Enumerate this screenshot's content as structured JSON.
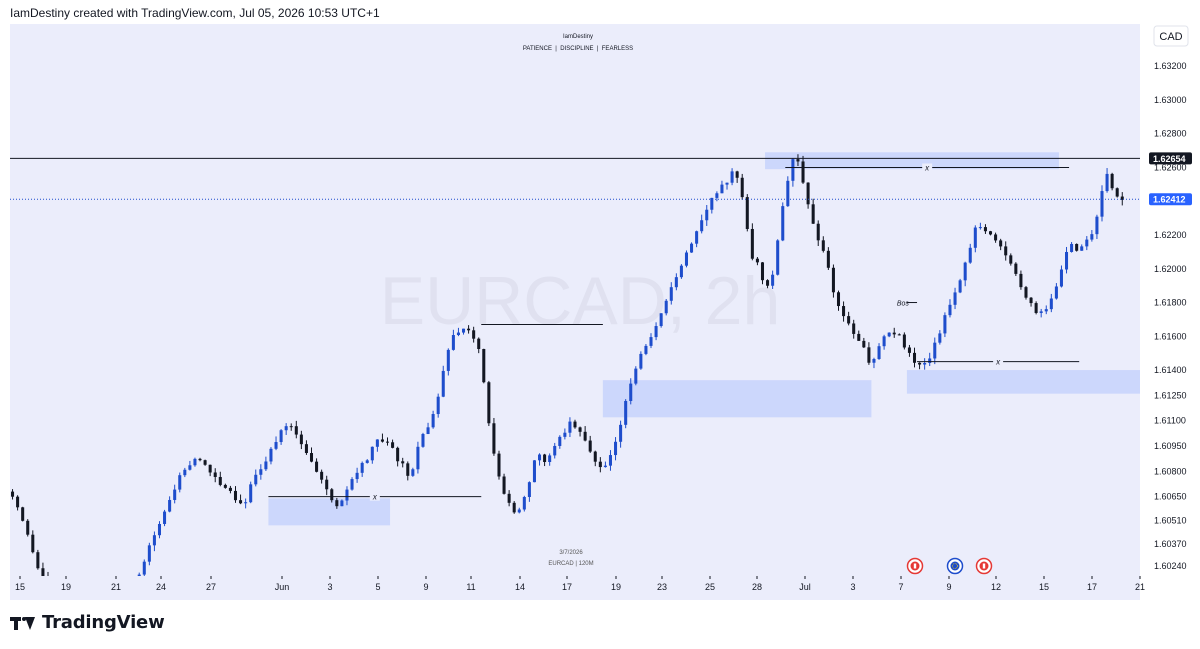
{
  "header": {
    "text": "IamDestiny created with TradingView.com, Jul 05, 2026 10:53 UTC+1"
  },
  "footer": {
    "logo_text": "TradingView"
  },
  "chart_title": {
    "author": "IamDestiny",
    "subtitle": "PATIENCE  |  DISCIPLINE  |  FEARLESS"
  },
  "watermark": "EURCAD, 2h",
  "bottom_info": {
    "date": "3/7/2026",
    "symbol": "EURCAD | 120M"
  },
  "currency_button": "CAD",
  "annotations": {
    "x_label": "x",
    "bos_label": "Bos"
  },
  "colors": {
    "background": "#ebedfb",
    "up": "#1e4dcc",
    "down": "#131722",
    "zone": "#c7d2fb",
    "price_tag": "#2962ff",
    "event_red": "#e53935",
    "event_blue": "#1e4dcc"
  },
  "event_icons": [
    "flag-canada-icon",
    "flag-eu-icon",
    "flag-canada-icon"
  ],
  "chart_data": {
    "type": "candlestick",
    "symbol": "EURCAD",
    "timeframe": "2h",
    "ylim": [
      1.6018,
      1.6345
    ],
    "y_ticks": [
      "1.63200",
      "1.63000",
      "1.62800",
      "1.62600",
      "1.62200",
      "1.62000",
      "1.61800",
      "1.61600",
      "1.61400",
      "1.61250",
      "1.61100",
      "1.60950",
      "1.60800",
      "1.60650",
      "1.60510",
      "1.60370",
      "1.60240"
    ],
    "x_ticks": [
      "15",
      "19",
      "21",
      "24",
      "27",
      "Jun",
      "3",
      "5",
      "9",
      "11",
      "14",
      "17",
      "19",
      "23",
      "25",
      "28",
      "Jul",
      "3",
      "7",
      "9",
      "12",
      "15",
      "17",
      "21"
    ],
    "price_labels": [
      {
        "label": "1.62654",
        "value": 1.62654,
        "style": "solid"
      },
      {
        "label": "1.62412",
        "value": 1.62412,
        "style": "dotted"
      }
    ],
    "path": [
      [
        0,
        1.6068
      ],
      [
        3,
        1.6045
      ],
      [
        6,
        1.6018
      ],
      [
        10,
        1.601
      ],
      [
        15,
        1.6005
      ],
      [
        20,
        1.6008
      ],
      [
        25,
        1.6012
      ],
      [
        28,
        1.604
      ],
      [
        31,
        1.606
      ],
      [
        34,
        1.608
      ],
      [
        37,
        1.6088
      ],
      [
        40,
        1.6078
      ],
      [
        43,
        1.607
      ],
      [
        46,
        1.606
      ],
      [
        48,
        1.6075
      ],
      [
        52,
        1.6095
      ],
      [
        55,
        1.611
      ],
      [
        57,
        1.61
      ],
      [
        59,
        1.609
      ],
      [
        62,
        1.607
      ],
      [
        65,
        1.6058
      ],
      [
        67,
        1.6072
      ],
      [
        70,
        1.6085
      ],
      [
        73,
        1.61
      ],
      [
        76,
        1.609
      ],
      [
        79,
        1.6075
      ],
      [
        81,
        1.61
      ],
      [
        84,
        1.6115
      ],
      [
        87,
        1.616
      ],
      [
        90,
        1.6168
      ],
      [
        93,
        1.615
      ],
      [
        94,
        1.612
      ],
      [
        96,
        1.608
      ],
      [
        98,
        1.6065
      ],
      [
        100,
        1.6055
      ],
      [
        102,
        1.6068
      ],
      [
        104,
        1.609
      ],
      [
        106,
        1.6085
      ],
      [
        108,
        1.61
      ],
      [
        111,
        1.611
      ],
      [
        114,
        1.6095
      ],
      [
        117,
        1.608
      ],
      [
        120,
        1.61
      ],
      [
        123,
        1.614
      ],
      [
        126,
        1.6155
      ],
      [
        129,
        1.6175
      ],
      [
        132,
        1.62
      ],
      [
        135,
        1.622
      ],
      [
        138,
        1.624
      ],
      [
        141,
        1.625
      ],
      [
        143,
        1.6258
      ],
      [
        145,
        1.624
      ],
      [
        146,
        1.621
      ],
      [
        148,
        1.62
      ],
      [
        149,
        1.6185
      ],
      [
        151,
        1.62
      ],
      [
        152,
        1.623
      ],
      [
        154,
        1.6262
      ],
      [
        155,
        1.6268
      ],
      [
        156,
        1.6255
      ],
      [
        157,
        1.6245
      ],
      [
        158,
        1.623
      ],
      [
        160,
        1.6215
      ],
      [
        161,
        1.6205
      ],
      [
        162,
        1.6195
      ],
      [
        163,
        1.618
      ],
      [
        165,
        1.617
      ],
      [
        167,
        1.616
      ],
      [
        169,
        1.615
      ],
      [
        170,
        1.614
      ],
      [
        171,
        1.6152
      ],
      [
        172,
        1.616
      ],
      [
        174,
        1.6165
      ],
      [
        176,
        1.6158
      ],
      [
        178,
        1.6145
      ],
      [
        180,
        1.614
      ],
      [
        182,
        1.615
      ],
      [
        183,
        1.616
      ],
      [
        185,
        1.6175
      ],
      [
        187,
        1.619
      ],
      [
        189,
        1.621
      ],
      [
        191,
        1.6228
      ],
      [
        193,
        1.6222
      ],
      [
        195,
        1.6215
      ],
      [
        197,
        1.6205
      ],
      [
        199,
        1.6195
      ],
      [
        201,
        1.618
      ],
      [
        203,
        1.6172
      ],
      [
        205,
        1.6178
      ],
      [
        207,
        1.6195
      ],
      [
        209,
        1.6215
      ],
      [
        211,
        1.621
      ],
      [
        213,
        1.6218
      ],
      [
        215,
        1.6235
      ],
      [
        216,
        1.6258
      ],
      [
        218,
        1.6245
      ],
      [
        219,
        1.624
      ]
    ],
    "zones": [
      {
        "from": 51,
        "to": 75,
        "top": 1.6064,
        "bottom": 1.6048
      },
      {
        "from": 117,
        "to": 170,
        "top": 1.6134,
        "bottom": 1.6112
      },
      {
        "from": 177,
        "to": 226,
        "top": 1.614,
        "bottom": 1.6126
      },
      {
        "from": 149,
        "to": 207,
        "top": 1.6269,
        "bottom": 1.6259
      }
    ],
    "lines": [
      {
        "from": 51,
        "to": 93,
        "value": 1.6065,
        "label": "x"
      },
      {
        "from": 93,
        "to": 117,
        "value": 1.6167,
        "label": ""
      },
      {
        "from": 153,
        "to": 209,
        "value": 1.626,
        "label": "x"
      },
      {
        "from": 179,
        "to": 211,
        "value": 1.6145,
        "label": "x"
      }
    ],
    "bos": {
      "from": 177,
      "to": 179,
      "value": 1.618,
      "label": "Bos"
    }
  }
}
